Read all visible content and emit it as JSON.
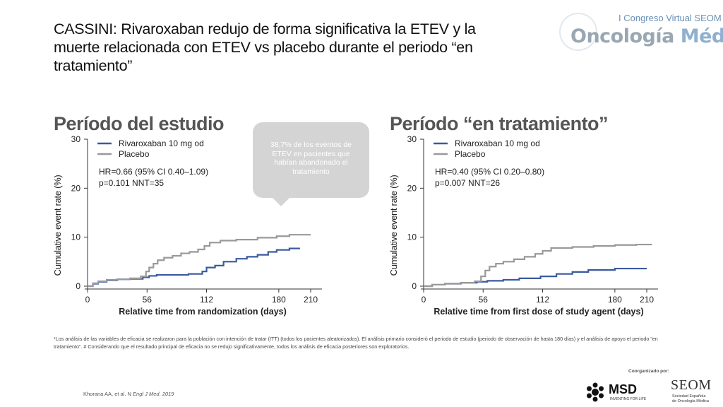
{
  "slide": {
    "title": "CASSINI: Rivaroxaban redujo de forma significativa la ETEV y la muerte relacionada con ETEV vs placebo durante el periodo “en tratamiento”",
    "logo_top": "I Congreso Virtual SEOM",
    "logo_main_a": "Oncología",
    "logo_main_b": " Médica",
    "callout": "38,7% de los eventos de ETEV en pacientes que habían abandonado el tratamiento",
    "footnote": "*Los análisis de las variables de eficacia se realizaron para la población con intención de tratar (ITT) (todos los pacientes aleatorizados). El análisis primario consideró el periodo de estudio (periodo de observación de hasta 180 días) y el análisis de apoyo el periodo “en tratamiento”. # Considerando que el resultado principal de eficacia no se redujo significativamente, todos los análisis de eficacia posteriores son exploratorios.",
    "reference_a": "Khorana AA, et al. N ",
    "reference_b": "Engl J Med. 2019",
    "coorganized": "Coorganizado por:",
    "msd": "MSD",
    "msd_tagline": "INVENTING FOR LIFE",
    "seom": "SEOM",
    "seom_sub1": "Sociedad Española",
    "seom_sub2": "de Oncología Médica",
    "colors": {
      "rivaroxaban": "#3a5aa0",
      "placebo": "#999999",
      "axis": "#333333"
    }
  },
  "chart_data": [
    {
      "type": "line",
      "panel_title": "Período del estudio",
      "xlabel": "Relative time from randomization (days)",
      "ylabel": "Cumulative event rate (%)",
      "xticks": [
        0,
        56,
        112,
        180,
        210
      ],
      "yticks": [
        0,
        10,
        20,
        30
      ],
      "xlim": [
        0,
        210
      ],
      "ylim": [
        0,
        30
      ],
      "legend": [
        "Rivaroxaban 10 mg od",
        "Placebo"
      ],
      "stats_line1": "HR=0.66 (95% CI 0.40–1.09)",
      "stats_line2": "p=0.101 NNT=35",
      "series": [
        {
          "name": "Rivaroxaban 10 mg od",
          "x": [
            0,
            5,
            10,
            18,
            28,
            40,
            52,
            58,
            65,
            95,
            108,
            112,
            120,
            128,
            140,
            150,
            160,
            170,
            178,
            190,
            200
          ],
          "y": [
            0,
            0.5,
            0.9,
            1.2,
            1.4,
            1.5,
            1.8,
            2.1,
            2.3,
            2.5,
            3.0,
            3.8,
            4.2,
            5.0,
            5.6,
            6.0,
            6.4,
            7.0,
            7.4,
            7.7,
            7.7
          ]
        },
        {
          "name": "Placebo",
          "x": [
            0,
            5,
            10,
            18,
            28,
            40,
            50,
            55,
            58,
            62,
            66,
            72,
            80,
            88,
            96,
            104,
            110,
            115,
            125,
            140,
            160,
            178,
            190,
            210
          ],
          "y": [
            0,
            0.6,
            1.0,
            1.3,
            1.4,
            1.6,
            2.0,
            3.0,
            3.8,
            4.6,
            5.3,
            5.8,
            6.2,
            6.7,
            7.0,
            7.5,
            8.2,
            8.9,
            9.3,
            9.5,
            9.9,
            10.2,
            10.5,
            10.5
          ]
        }
      ]
    },
    {
      "type": "line",
      "panel_title": "Período “en tratamiento”",
      "xlabel": "Relative time from first dose of study agent (days)",
      "ylabel": "Cumulative event rate (%)",
      "xticks": [
        0,
        56,
        112,
        180,
        210
      ],
      "yticks": [
        0,
        10,
        20,
        30
      ],
      "xlim": [
        0,
        210
      ],
      "ylim": [
        0,
        30
      ],
      "legend": [
        "Rivaroxaban 10 mg od",
        "Placebo"
      ],
      "stats_line1": "HR=0.40 (95% CI 0.20–0.80)",
      "stats_line2": "p=0.007 NNT=26",
      "series": [
        {
          "name": "Rivaroxaban 10 mg od",
          "x": [
            0,
            8,
            20,
            35,
            50,
            60,
            75,
            90,
            110,
            125,
            140,
            155,
            180,
            210
          ],
          "y": [
            0,
            0.3,
            0.5,
            0.7,
            0.9,
            1.1,
            1.3,
            1.6,
            2.0,
            2.5,
            2.9,
            3.3,
            3.6,
            3.6
          ]
        },
        {
          "name": "Placebo",
          "x": [
            0,
            8,
            20,
            35,
            48,
            54,
            58,
            62,
            68,
            75,
            85,
            95,
            105,
            112,
            120,
            140,
            160,
            180,
            200,
            215
          ],
          "y": [
            0,
            0.3,
            0.5,
            0.7,
            1.0,
            2.0,
            3.2,
            4.0,
            4.6,
            5.0,
            5.5,
            6.0,
            6.6,
            7.2,
            7.8,
            8.0,
            8.2,
            8.4,
            8.5,
            8.5
          ]
        }
      ]
    }
  ]
}
